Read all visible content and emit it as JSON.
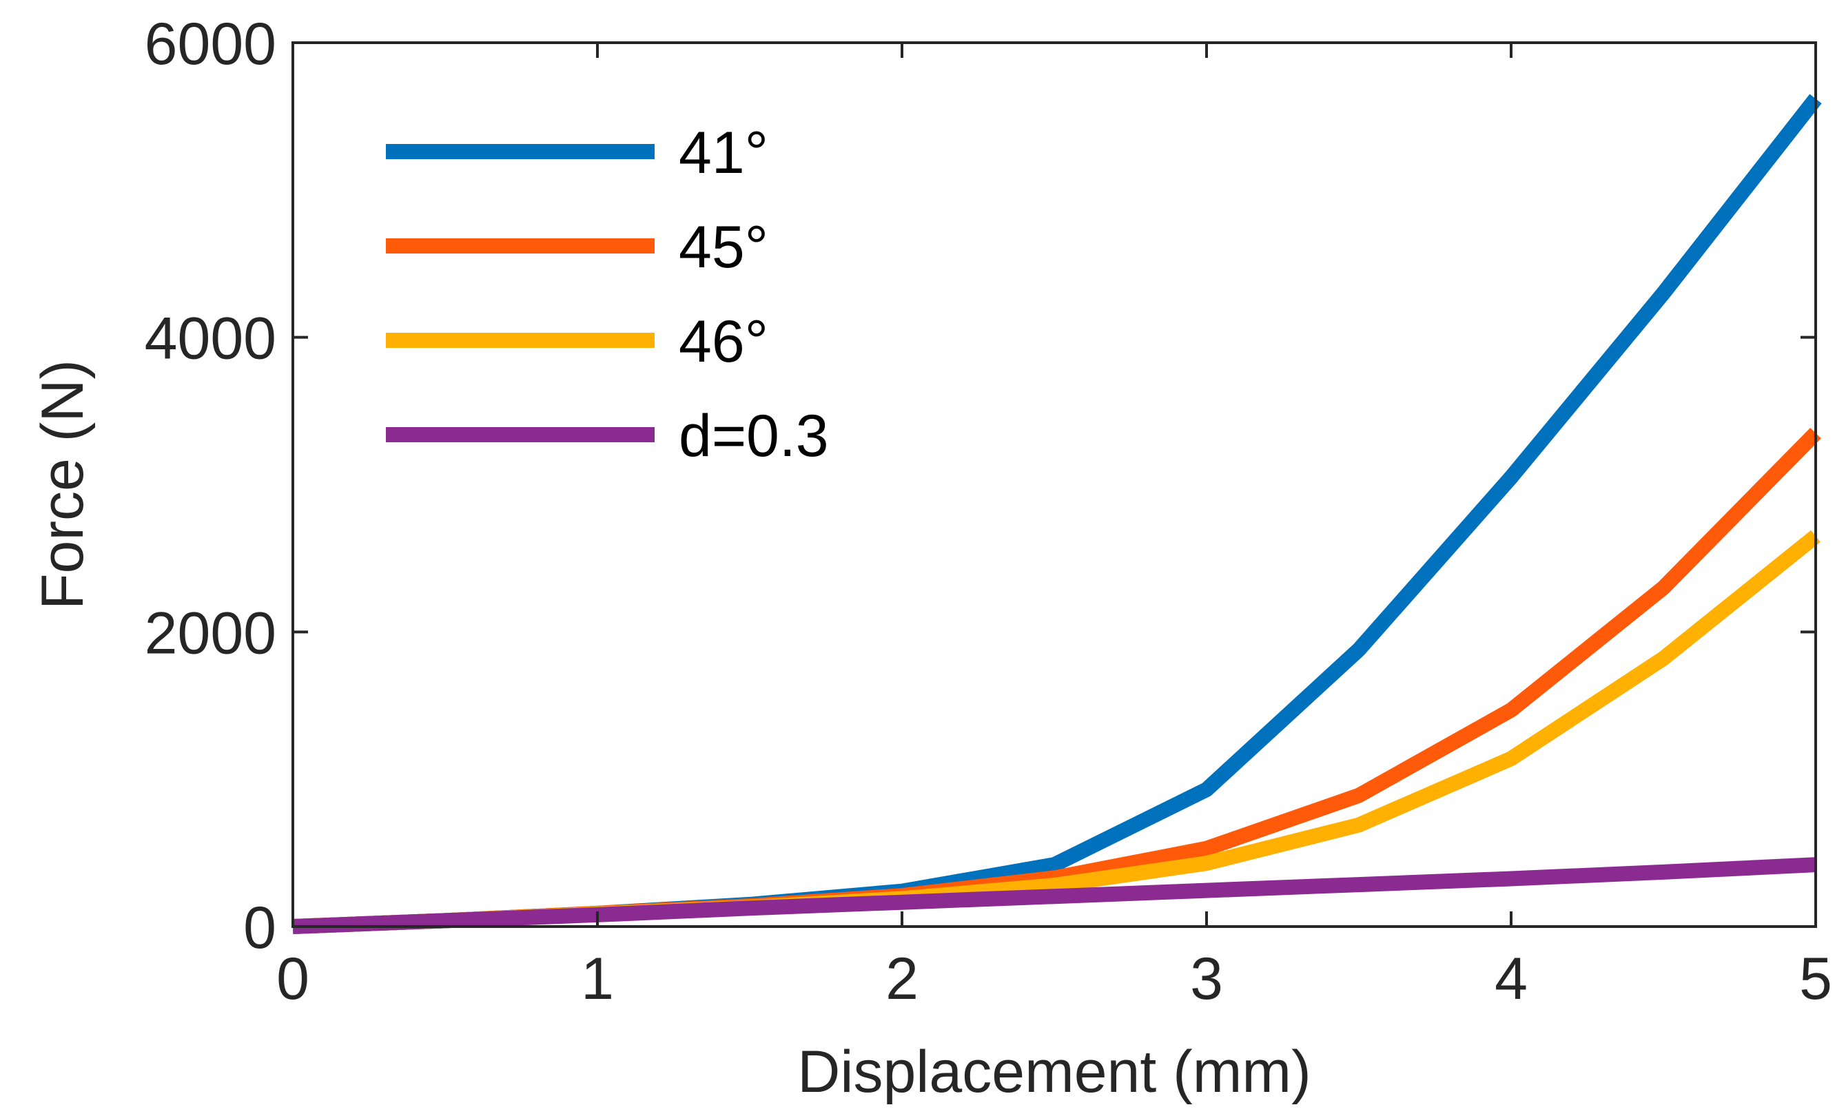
{
  "chart_data": {
    "type": "line",
    "title": "",
    "xlabel": "Displacement (mm)",
    "ylabel": "Force (N)",
    "xlim": [
      0,
      5
    ],
    "ylim": [
      0,
      6000
    ],
    "x_ticks": [
      0,
      1,
      2,
      3,
      4,
      5
    ],
    "x_tick_labels": [
      "0",
      "1",
      "2",
      "3",
      "4",
      "5"
    ],
    "y_ticks": [
      0,
      2000,
      4000,
      6000
    ],
    "y_tick_labels": [
      "0",
      "2000",
      "4000",
      "6000"
    ],
    "grid": false,
    "legend_position": "top-left",
    "x": [
      0,
      0.5,
      1,
      1.5,
      2,
      2.5,
      3,
      3.5,
      4,
      4.5,
      5
    ],
    "series": [
      {
        "name": "41°",
        "color": "#0072BD",
        "values": [
          0,
          40,
          90,
          150,
          240,
          420,
          930,
          1880,
          3050,
          4300,
          5620
        ]
      },
      {
        "name": "45°",
        "color": "#FF5A0A",
        "values": [
          0,
          40,
          90,
          140,
          210,
          330,
          530,
          890,
          1470,
          2300,
          3350
        ]
      },
      {
        "name": "46°",
        "color": "#FFB000",
        "values": [
          0,
          40,
          85,
          130,
          190,
          280,
          430,
          690,
          1140,
          1820,
          2650
        ]
      },
      {
        "name": "d=0.3",
        "color": "#8B2B92",
        "values": [
          0,
          40,
          80,
          125,
          165,
          205,
          245,
          285,
          325,
          370,
          420
        ]
      }
    ]
  }
}
